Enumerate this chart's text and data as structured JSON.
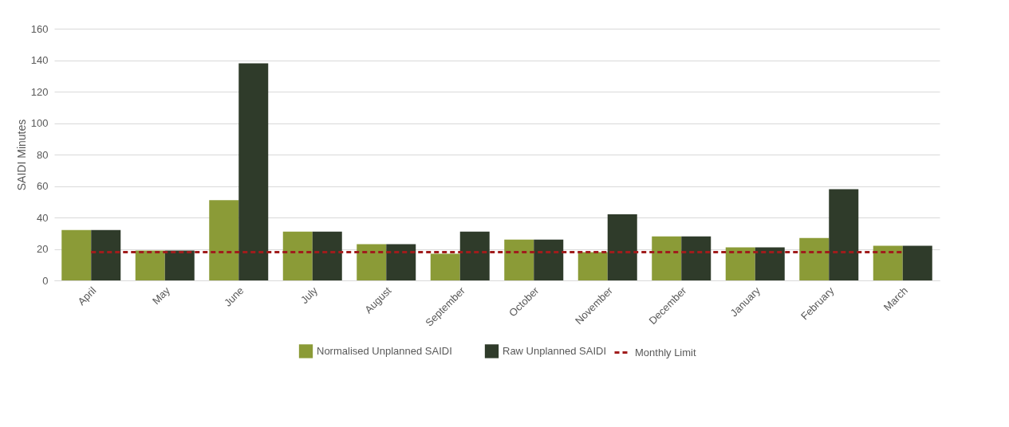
{
  "chart_data": {
    "type": "bar",
    "ylabel": "SAIDI Minutes",
    "categories": [
      "April",
      "May",
      "June",
      "July",
      "August",
      "September",
      "October",
      "November",
      "December",
      "January",
      "February",
      "March"
    ],
    "series": [
      {
        "name": "Normalised Unplanned SAIDI",
        "color": "#8b9b37",
        "values": [
          32,
          19,
          51,
          31,
          23,
          17,
          26,
          18,
          28,
          21,
          27,
          22
        ]
      },
      {
        "name": "Raw Unplanned SAIDI",
        "color": "#2f3b2a",
        "values": [
          32,
          19,
          138,
          31,
          23,
          31,
          26,
          42,
          28,
          21,
          58,
          22
        ]
      },
      {
        "name": "Monthly Limit",
        "type": "line",
        "color": "#a01c1c",
        "line_style": "dashed",
        "values": [
          18,
          18,
          18,
          18,
          18,
          18,
          18,
          18,
          18,
          18,
          18,
          18
        ]
      }
    ],
    "ylim": [
      0,
      160
    ],
    "yticks": [
      0,
      20,
      40,
      60,
      80,
      100,
      120,
      140,
      160
    ],
    "grid": "y",
    "legend": "bottom"
  }
}
